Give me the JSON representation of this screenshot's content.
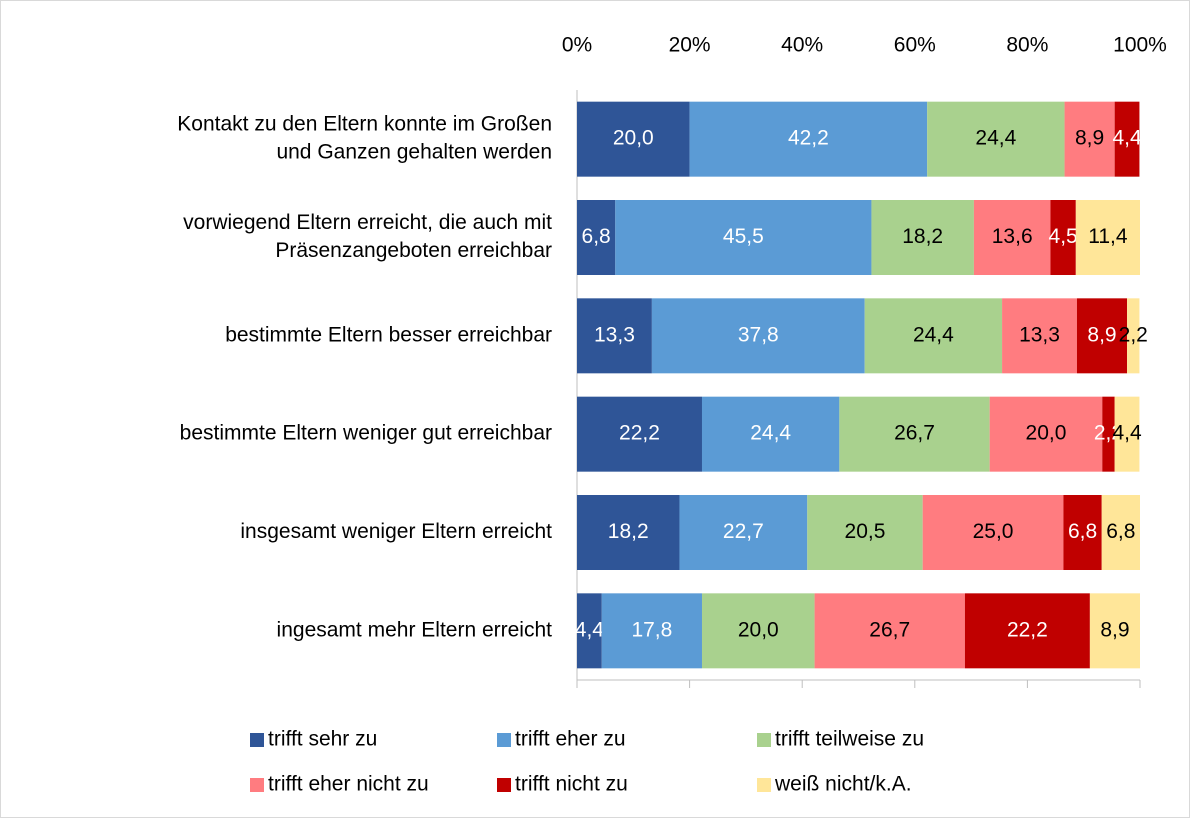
{
  "chart_data": {
    "type": "stacked-bar-horizontal",
    "categories": [
      [
        "Kontakt zu den Eltern konnte im Großen",
        "und Ganzen gehalten werden"
      ],
      [
        "vorwiegend Eltern erreicht, die auch mit",
        "Präsenzangeboten erreichbar"
      ],
      "bestimmte Eltern besser erreichbar",
      "bestimmte Eltern weniger gut erreichbar",
      "insgesamt weniger Eltern erreicht",
      "ingesamt mehr Eltern erreicht"
    ],
    "series": [
      {
        "name": "trifft sehr zu",
        "color": "#2f5597",
        "label_color": "#ffffff",
        "values": [
          20.0,
          6.8,
          13.3,
          22.2,
          18.2,
          4.4
        ],
        "value_labels": [
          "20,0",
          "6,8",
          "13,3",
          "22,2",
          "18,2",
          "4,4"
        ]
      },
      {
        "name": "trifft eher zu",
        "color": "#5b9bd5",
        "label_color": "#ffffff",
        "values": [
          42.2,
          45.5,
          37.8,
          24.4,
          22.7,
          17.8
        ],
        "value_labels": [
          "42,2",
          "45,5",
          "37,8",
          "24,4",
          "22,7",
          "17,8"
        ]
      },
      {
        "name": "trifft teilweise zu",
        "color": "#a9d18e",
        "label_color": "#000000",
        "values": [
          24.4,
          18.2,
          24.4,
          26.7,
          20.5,
          20.0
        ],
        "value_labels": [
          "24,4",
          "18,2",
          "24,4",
          "26,7",
          "20,5",
          "20,0"
        ]
      },
      {
        "name": "trifft eher nicht zu",
        "color": "#ff7c80",
        "label_color": "#000000",
        "values": [
          8.9,
          13.6,
          13.3,
          20.0,
          25.0,
          26.7
        ],
        "value_labels": [
          "8,9",
          "13,6",
          "13,3",
          "20,0",
          "25,0",
          "26,7"
        ]
      },
      {
        "name": "trifft nicht zu",
        "color": "#c00000",
        "label_color": "#ffffff",
        "values": [
          4.4,
          4.5,
          8.9,
          2.2,
          6.8,
          22.2
        ],
        "value_labels": [
          "4,4",
          "4,5",
          "8,9",
          "2,2",
          "6,8",
          "22,2"
        ]
      },
      {
        "name": "weiß nicht/k.A.",
        "color": "#ffe699",
        "label_color": "#000000",
        "values": [
          null,
          11.4,
          2.2,
          4.4,
          6.8,
          8.9
        ],
        "value_labels": [
          null,
          "11,4",
          "2,2",
          "4,4",
          "6,8",
          "8,9"
        ]
      }
    ],
    "xlim": [
      0,
      100
    ],
    "xticks": [
      {
        "value": 0,
        "label": "0%"
      },
      {
        "value": 20,
        "label": "20%"
      },
      {
        "value": 40,
        "label": "40%"
      },
      {
        "value": 60,
        "label": "60%"
      },
      {
        "value": 80,
        "label": "80%"
      },
      {
        "value": 100,
        "label": "100%"
      }
    ],
    "grid": false,
    "legend": "bottom"
  }
}
